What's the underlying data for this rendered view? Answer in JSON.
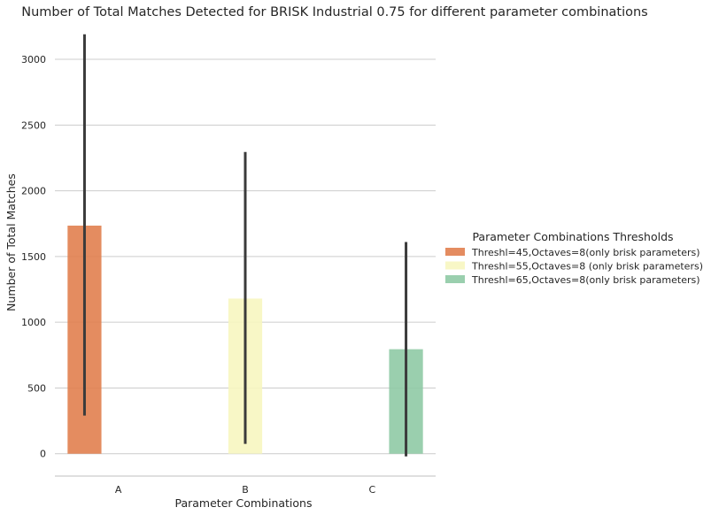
{
  "chart_data": {
    "type": "bar",
    "title": "Number of Total Matches Detected for BRISK Industrial 0.75 for different parameter combinations",
    "xlabel": "Parameter Combinations",
    "ylabel": "Number of Total Matches",
    "categories": [
      "A",
      "B",
      "C"
    ],
    "ylim": [
      -170,
      3330
    ],
    "yticks": [
      0,
      500,
      1000,
      1500,
      2000,
      2500,
      3000
    ],
    "grid": true,
    "legend": {
      "title": "Parameter Combinations Thresholds",
      "placement": "right"
    },
    "series": [
      {
        "name": "Threshl=45,Octaves=8(only brisk parameters)",
        "color": "#e1804f",
        "values": [
          1735,
          null,
          null
        ],
        "error_low": [
          290,
          null,
          null
        ],
        "error_high": [
          3190,
          null,
          null
        ]
      },
      {
        "name": "Threshl=55,Octaves=8 (only brisk parameters)",
        "color": "#f7f6c0",
        "values": [
          null,
          1180,
          null
        ],
        "error_low": [
          null,
          75,
          null
        ],
        "error_high": [
          null,
          2295,
          null
        ]
      },
      {
        "name": "Threshl=65,Octaves=8(only brisk parameters)",
        "color": "#8fcaa5",
        "values": [
          null,
          null,
          795
        ],
        "error_low": [
          null,
          null,
          -20
        ],
        "error_high": [
          null,
          null,
          1610
        ]
      }
    ]
  }
}
